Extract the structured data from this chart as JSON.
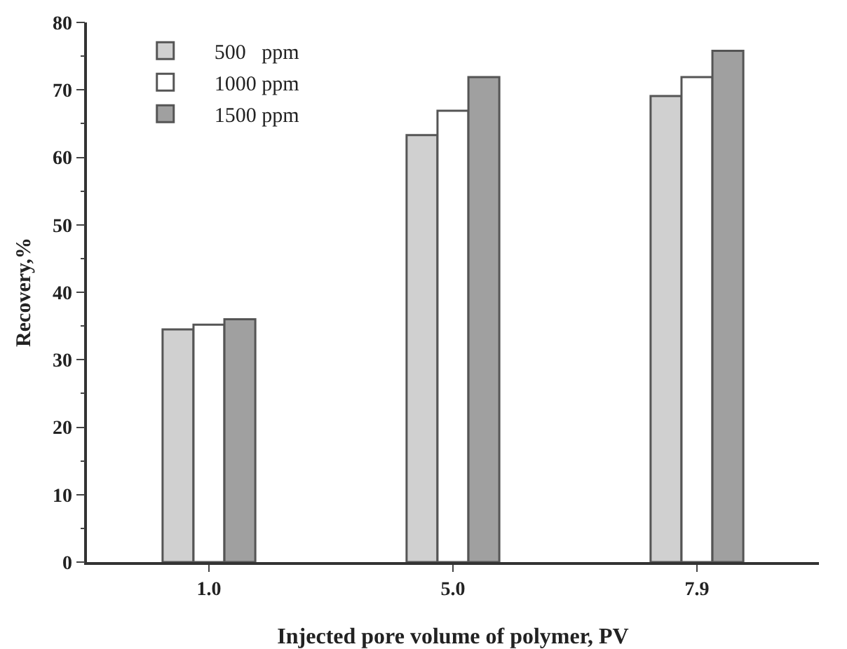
{
  "chart_data": {
    "type": "bar",
    "xlabel": "Injected pore volume of polymer, PV",
    "ylabel": "Recovery,%",
    "categories": [
      "1.0",
      "5.0",
      "7.9"
    ],
    "series": [
      {
        "name": "500   ppm",
        "color": "#d0d0d0",
        "values": [
          34.5,
          63.3,
          69.1
        ]
      },
      {
        "name": "1000 ppm",
        "color": "#ffffff",
        "values": [
          35.2,
          66.9,
          71.9
        ]
      },
      {
        "name": "1500 ppm",
        "color": "#a0a0a0",
        "values": [
          36.0,
          71.9,
          75.8
        ]
      }
    ],
    "ylim": [
      0,
      80
    ],
    "yticks": [
      0,
      10,
      20,
      30,
      40,
      50,
      60,
      70,
      80
    ],
    "grid": false,
    "legend": "top left"
  }
}
